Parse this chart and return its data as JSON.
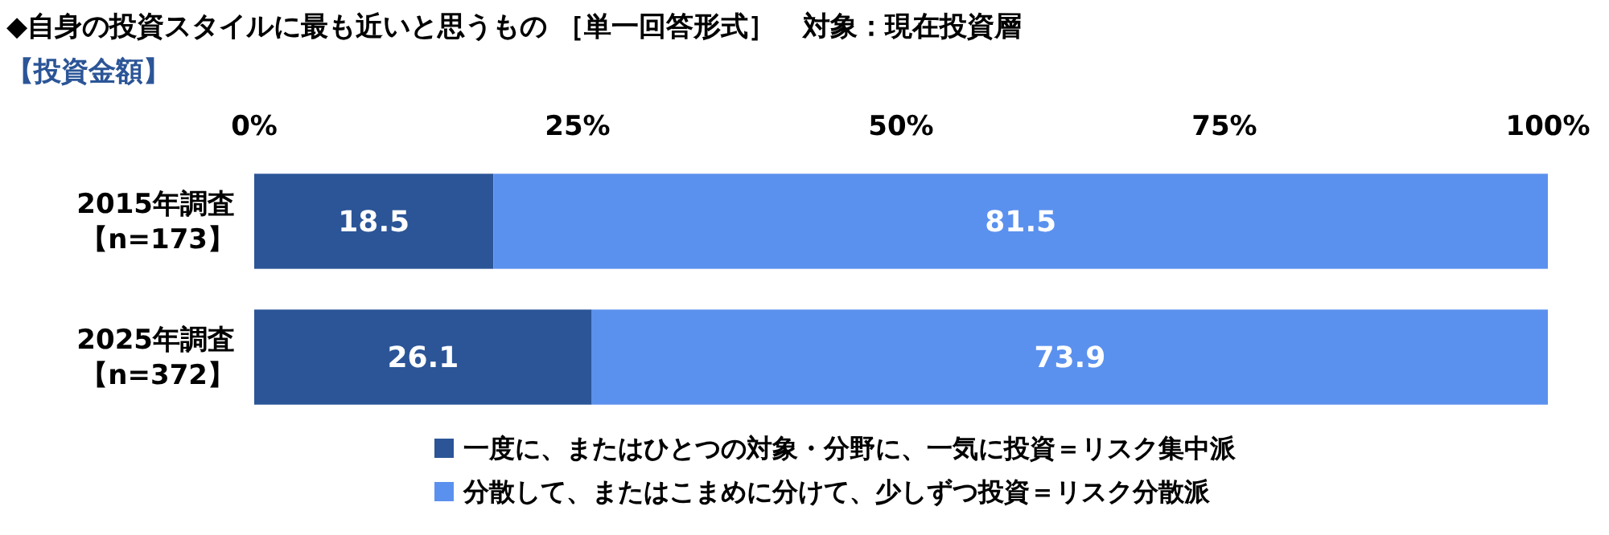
{
  "chart_data": {
    "type": "bar",
    "orientation": "horizontal",
    "stacked": true,
    "title": "◆自身の投資スタイルに最も近いと思うもの ［単一回答形式］　対象：現在投資層",
    "subtitle": "【投資金額】",
    "categories": [
      "2015年調査【n=173】",
      "2025年調査【n=372】"
    ],
    "series": [
      {
        "name": "一度に、またはひとつの対象・分野に、一気に投資＝リスク集中派",
        "color": "#2b5597",
        "values": [
          18.5,
          26.1
        ]
      },
      {
        "name": "分散して、またはこまめに分けて、少しずつ投資＝リスク分散派",
        "color": "#5b91ee",
        "values": [
          81.5,
          73.9
        ]
      }
    ],
    "xlim": [
      0,
      100
    ],
    "xticks": [
      {
        "value": 0,
        "label": "0%"
      },
      {
        "value": 25,
        "label": "25%"
      },
      {
        "value": 50,
        "label": "50%"
      },
      {
        "value": 75,
        "label": "75%"
      },
      {
        "value": 100,
        "label": "100%"
      }
    ],
    "data_labels": true,
    "legend": "bottom",
    "grid": false
  }
}
